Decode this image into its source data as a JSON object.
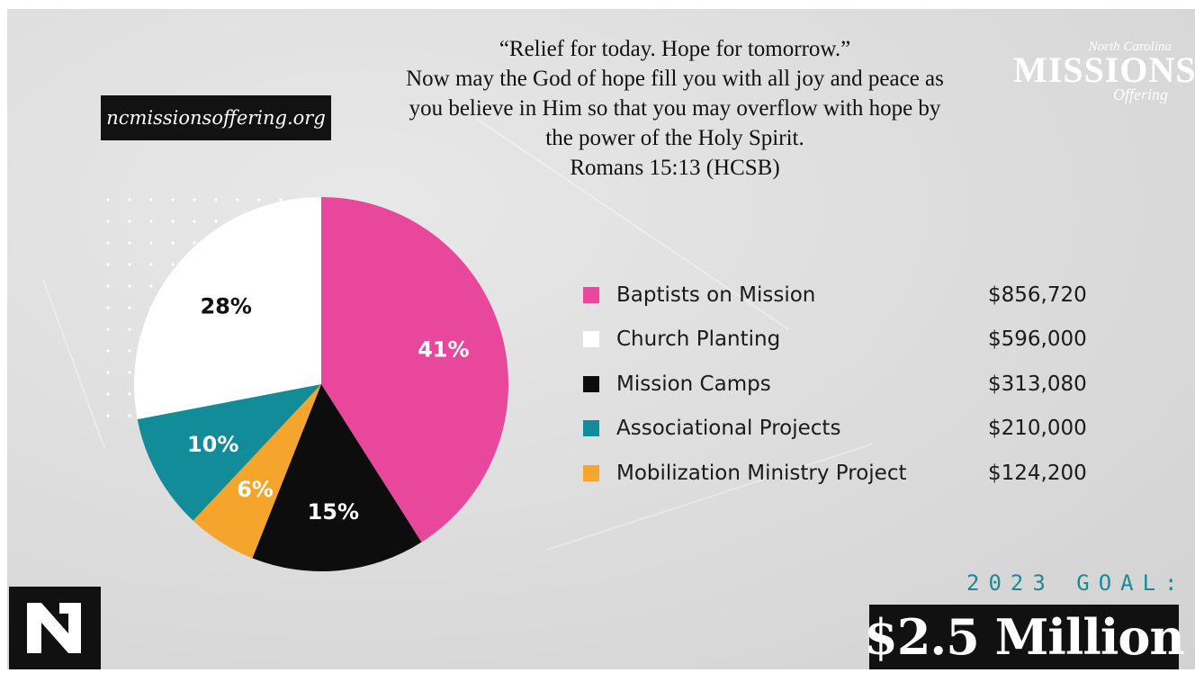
{
  "url": "ncmissionsoffering.org",
  "verse": {
    "lines": [
      "“Relief for today. Hope for tomorrow.”",
      "Now may the God of hope fill you with all joy and peace as",
      "you believe in Him so that you may overflow with hope by",
      "the power of the Holy Spirit.",
      "Romans 15:13 (HCSB)"
    ]
  },
  "logo": {
    "line1": "North Carolina",
    "line2": "MISSIONS",
    "line3": "Offering"
  },
  "goal": {
    "label": "2023 GOAL:",
    "amount": "$2.5 Million"
  },
  "chart_data": {
    "type": "pie",
    "slices": [
      {
        "name": "Baptists on Mission",
        "amount": "$856,720",
        "percent": 41,
        "label": "41%",
        "color": "#e8479b",
        "label_color": "#ffffff"
      },
      {
        "name": "Mission Camps",
        "amount": "$313,080",
        "percent": 15,
        "label": "15%",
        "color": "#0d0d0d",
        "label_color": "#ffffff"
      },
      {
        "name": "Mobilization Ministry Project",
        "amount": "$124,200",
        "percent": 6,
        "label": "6%",
        "color": "#f5a52c",
        "label_color": "#ffffff"
      },
      {
        "name": "Associational Projects",
        "amount": "$210,000",
        "percent": 10,
        "label": "10%",
        "color": "#118c98",
        "label_color": "#ffffff"
      },
      {
        "name": "Church Planting",
        "amount": "$596,000",
        "percent": 28,
        "label": "28%",
        "color": "#ffffff",
        "label_color": "#111111"
      }
    ],
    "legend_order": [
      0,
      4,
      1,
      3,
      2
    ],
    "legend_position": "right"
  }
}
